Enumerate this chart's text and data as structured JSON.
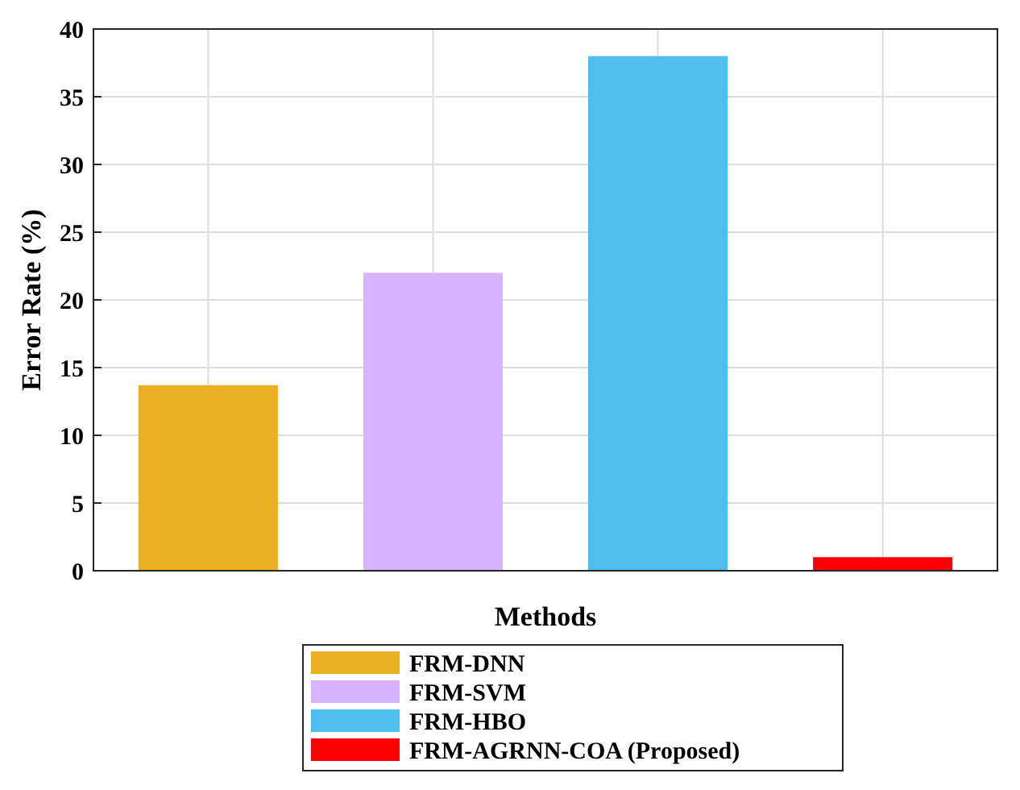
{
  "chart_data": {
    "type": "bar",
    "xlabel": "Methods",
    "ylabel": "Error Rate (%)",
    "categories": [
      null,
      null,
      null,
      null
    ],
    "series": [
      {
        "name": "FRM-DNN",
        "color": "#ebb021",
        "values": [
          13.7,
          null,
          null,
          null
        ]
      },
      {
        "name": "FRM-SVM",
        "color": "#d9b3ff",
        "values": [
          null,
          22,
          null,
          null
        ]
      },
      {
        "name": "FRM-HBO",
        "color": "#4dbeee",
        "values": [
          null,
          null,
          38,
          null
        ]
      },
      {
        "name": "FRM-AGRNN-COA (Proposed)",
        "color": "#ff0000",
        "values": [
          null,
          null,
          null,
          1
        ]
      }
    ],
    "ylim": [
      0,
      40
    ],
    "yticks": [
      0,
      5,
      10,
      15,
      20,
      25,
      30,
      35,
      40
    ],
    "grid": true,
    "legend": "bottom"
  }
}
